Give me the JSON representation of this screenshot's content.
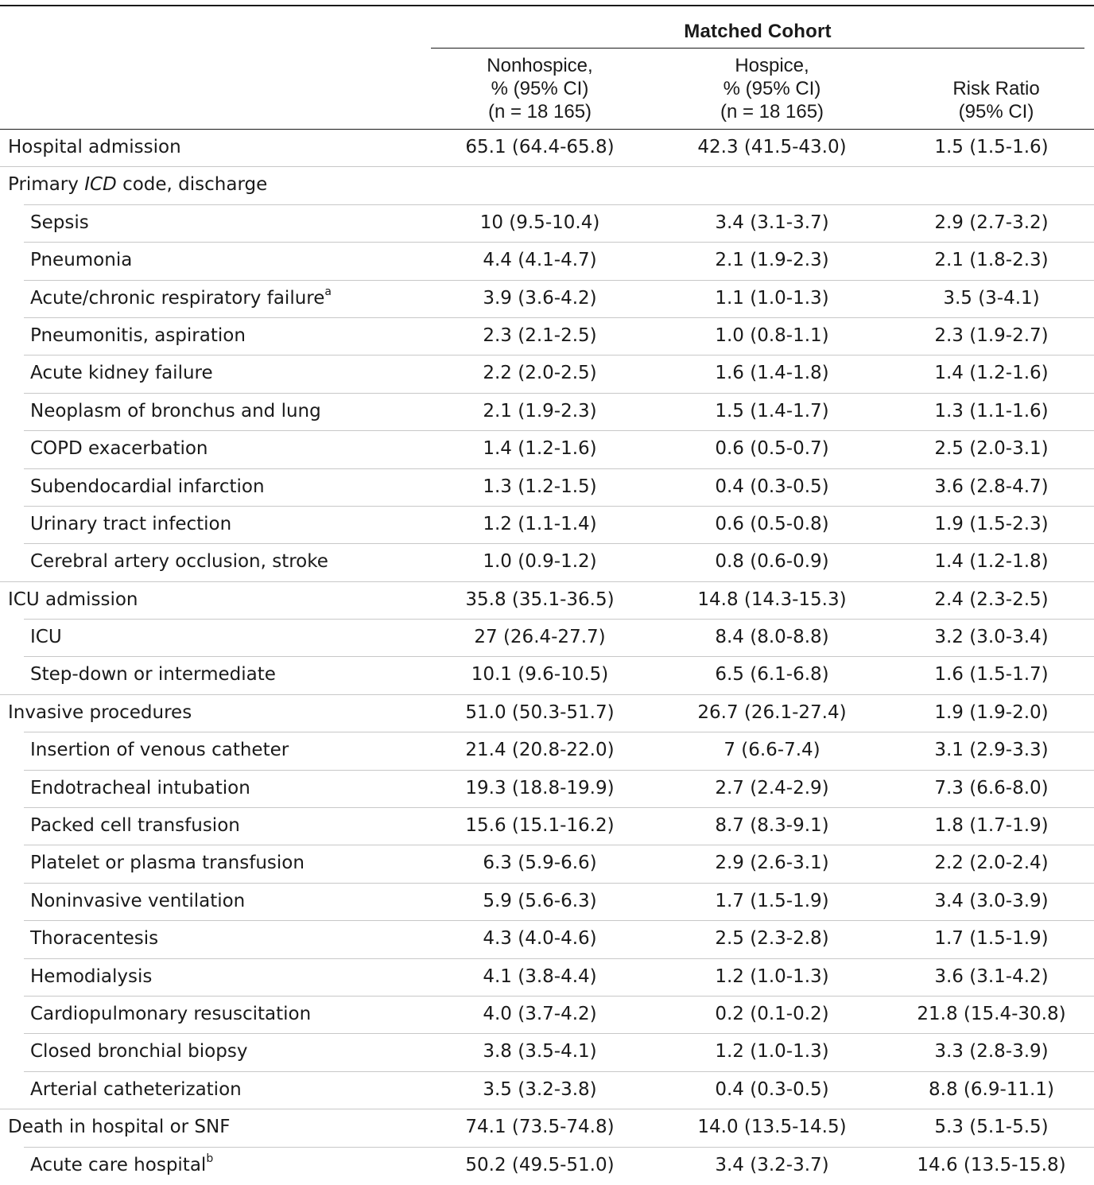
{
  "header": {
    "group_title": "Matched Cohort",
    "columns": [
      {
        "lines": [
          "Nonhospice,",
          "% (95% CI)",
          "(n = 18 165)"
        ]
      },
      {
        "lines": [
          "Hospice,",
          "% (95% CI)",
          "(n = 18 165)"
        ]
      },
      {
        "lines": [
          "Risk Ratio",
          "(95% CI)"
        ]
      }
    ]
  },
  "rows": [
    {
      "label": "Hospital admission",
      "level": 0,
      "nonhospice": "65.1 (64.4-65.8)",
      "hospice": "42.3 (41.5-43.0)",
      "risk_ratio": "1.5 (1.5-1.6)"
    },
    {
      "label": "Primary ICD code, discharge",
      "label_parts": [
        "Primary ",
        "ICD",
        " code, discharge"
      ],
      "level": 0,
      "nonhospice": "",
      "hospice": "",
      "risk_ratio": ""
    },
    {
      "label": "Sepsis",
      "level": 1,
      "nonhospice": "10 (9.5-10.4)",
      "hospice": "3.4 (3.1-3.7)",
      "risk_ratio": "2.9 (2.7-3.2)"
    },
    {
      "label": "Pneumonia",
      "level": 1,
      "nonhospice": "4.4 (4.1-4.7)",
      "hospice": "2.1 (1.9-2.3)",
      "risk_ratio": "2.1 (1.8-2.3)"
    },
    {
      "label": "Acute/chronic respiratory failure",
      "footnote": "a",
      "level": 1,
      "nonhospice": "3.9 (3.6-4.2)",
      "hospice": "1.1 (1.0-1.3)",
      "risk_ratio": "3.5 (3-4.1)"
    },
    {
      "label": "Pneumonitis, aspiration",
      "level": 1,
      "nonhospice": "2.3 (2.1-2.5)",
      "hospice": "1.0 (0.8-1.1)",
      "risk_ratio": "2.3 (1.9-2.7)"
    },
    {
      "label": "Acute kidney failure",
      "level": 1,
      "nonhospice": "2.2 (2.0-2.5)",
      "hospice": "1.6 (1.4-1.8)",
      "risk_ratio": "1.4 (1.2-1.6)"
    },
    {
      "label": "Neoplasm of bronchus and lung",
      "level": 1,
      "nonhospice": "2.1 (1.9-2.3)",
      "hospice": "1.5 (1.4-1.7)",
      "risk_ratio": "1.3 (1.1-1.6)"
    },
    {
      "label": "COPD exacerbation",
      "level": 1,
      "nonhospice": "1.4 (1.2-1.6)",
      "hospice": "0.6 (0.5-0.7)",
      "risk_ratio": "2.5 (2.0-3.1)"
    },
    {
      "label": "Subendocardial infarction",
      "level": 1,
      "nonhospice": "1.3 (1.2-1.5)",
      "hospice": "0.4 (0.3-0.5)",
      "risk_ratio": "3.6 (2.8-4.7)"
    },
    {
      "label": "Urinary tract infection",
      "level": 1,
      "nonhospice": "1.2 (1.1-1.4)",
      "hospice": "0.6 (0.5-0.8)",
      "risk_ratio": "1.9 (1.5-2.3)"
    },
    {
      "label": "Cerebral artery occlusion, stroke",
      "level": 1,
      "nonhospice": "1.0 (0.9-1.2)",
      "hospice": "0.8 (0.6-0.9)",
      "risk_ratio": "1.4 (1.2-1.8)"
    },
    {
      "label": "ICU admission",
      "level": 0,
      "nonhospice": "35.8 (35.1-36.5)",
      "hospice": "14.8 (14.3-15.3)",
      "risk_ratio": "2.4 (2.3-2.5)"
    },
    {
      "label": "ICU",
      "level": 1,
      "nonhospice": "27 (26.4-27.7)",
      "hospice": "8.4 (8.0-8.8)",
      "risk_ratio": "3.2 (3.0-3.4)"
    },
    {
      "label": "Step-down or intermediate",
      "level": 1,
      "nonhospice": "10.1 (9.6-10.5)",
      "hospice": "6.5 (6.1-6.8)",
      "risk_ratio": "1.6 (1.5-1.7)"
    },
    {
      "label": "Invasive procedures",
      "level": 0,
      "nonhospice": "51.0 (50.3-51.7)",
      "hospice": "26.7 (26.1-27.4)",
      "risk_ratio": "1.9 (1.9-2.0)"
    },
    {
      "label": "Insertion of venous catheter",
      "level": 1,
      "nonhospice": "21.4 (20.8-22.0)",
      "hospice": "7 (6.6-7.4)",
      "risk_ratio": "3.1 (2.9-3.3)"
    },
    {
      "label": "Endotracheal intubation",
      "level": 1,
      "nonhospice": "19.3 (18.8-19.9)",
      "hospice": "2.7 (2.4-2.9)",
      "risk_ratio": "7.3 (6.6-8.0)"
    },
    {
      "label": "Packed cell transfusion",
      "level": 1,
      "nonhospice": "15.6 (15.1-16.2)",
      "hospice": "8.7 (8.3-9.1)",
      "risk_ratio": "1.8 (1.7-1.9)"
    },
    {
      "label": "Platelet or plasma transfusion",
      "level": 1,
      "nonhospice": "6.3 (5.9-6.6)",
      "hospice": "2.9 (2.6-3.1)",
      "risk_ratio": "2.2 (2.0-2.4)"
    },
    {
      "label": "Noninvasive ventilation",
      "level": 1,
      "nonhospice": "5.9 (5.6-6.3)",
      "hospice": "1.7 (1.5-1.9)",
      "risk_ratio": "3.4 (3.0-3.9)"
    },
    {
      "label": "Thoracentesis",
      "level": 1,
      "nonhospice": "4.3 (4.0-4.6)",
      "hospice": "2.5 (2.3-2.8)",
      "risk_ratio": "1.7 (1.5-1.9)"
    },
    {
      "label": "Hemodialysis",
      "level": 1,
      "nonhospice": "4.1 (3.8-4.4)",
      "hospice": "1.2 (1.0-1.3)",
      "risk_ratio": "3.6 (3.1-4.2)"
    },
    {
      "label": "Cardiopulmonary resuscitation",
      "level": 1,
      "nonhospice": "4.0 (3.7-4.2)",
      "hospice": "0.2 (0.1-0.2)",
      "risk_ratio": "21.8 (15.4-30.8)"
    },
    {
      "label": "Closed bronchial biopsy",
      "level": 1,
      "nonhospice": "3.8 (3.5-4.1)",
      "hospice": "1.2 (1.0-1.3)",
      "risk_ratio": "3.3 (2.8-3.9)"
    },
    {
      "label": "Arterial catheterization",
      "level": 1,
      "nonhospice": "3.5 (3.2-3.8)",
      "hospice": "0.4 (0.3-0.5)",
      "risk_ratio": "8.8 (6.9-11.1)"
    },
    {
      "label": "Death in hospital or SNF",
      "level": 0,
      "nonhospice": "74.1 (73.5-74.8)",
      "hospice": "14.0 (13.5-14.5)",
      "risk_ratio": "5.3 (5.1-5.5)"
    },
    {
      "label": "Acute care hospital",
      "footnote": "b",
      "level": 1,
      "nonhospice": "50.2 (49.5-51.0)",
      "hospice": "3.4 (3.2-3.7)",
      "risk_ratio": "14.6 (13.5-15.8)"
    }
  ]
}
